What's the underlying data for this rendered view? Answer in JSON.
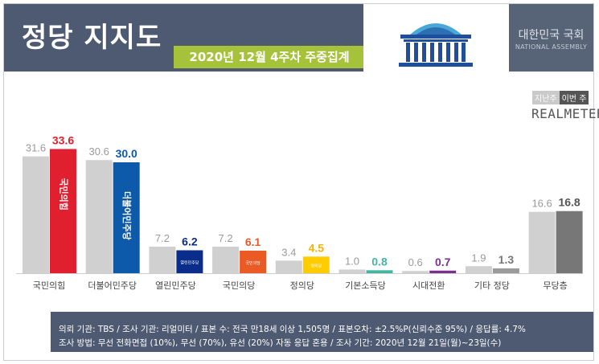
{
  "header": {
    "title": "정당 지지도",
    "subtitle": "2020년 12월 4주차 주중집계",
    "assembly_name_ko": "대한민국 국회",
    "assembly_name_en": "NATIONAL ASSEMBLY"
  },
  "legend": {
    "prev_label": "지난주",
    "this_label": "이번 주"
  },
  "brand": "REALMETER",
  "colors": {
    "prev": "#d0d0d0",
    "header_bg": "#4d5a72",
    "subtitle_bg": "#a6c13a"
  },
  "chart_data": {
    "type": "bar",
    "categories": [
      "국민의힘",
      "더불어민주당",
      "열린민주당",
      "국민의당",
      "정의당",
      "기본소득당",
      "시대전환",
      "기타 정당",
      "무당층"
    ],
    "series": [
      {
        "name": "지난주",
        "values": [
          31.6,
          30.6,
          7.2,
          7.2,
          3.4,
          1.0,
          0.6,
          1.9,
          16.6
        ]
      },
      {
        "name": "이번 주",
        "values": [
          33.6,
          30.0,
          6.2,
          6.1,
          4.5,
          0.8,
          0.7,
          1.3,
          16.8
        ]
      }
    ],
    "bar_colors": [
      "#e0202f",
      "#0d5aaa",
      "#0a2d8c",
      "#ea5a24",
      "#ffcc00",
      "#44b6a0",
      "#7a2e8e",
      "#9a9a9a",
      "#777777"
    ],
    "label_colors": [
      "#e0202f",
      "#0d5aaa",
      "#0a2d8c",
      "#ea5a24",
      "#f2b400",
      "#44b6a0",
      "#7a2e8e",
      "#777777",
      "#555555"
    ],
    "bar_text": [
      "국민의힘",
      "더불어민주당",
      "열린민주당",
      "국민의당",
      "정의당",
      "",
      "",
      "",
      ""
    ],
    "ylim": [
      0,
      40
    ],
    "grid": false,
    "legend_position": "top-right"
  },
  "footer": {
    "line1": "의뢰 기관: TBS / 조사 기관: 리얼미터 / 표본 수: 전국 만18세 이상 1,505명 / 표본오차: ±2.5%P(신뢰수준 95%) / 응답률: 4.7%",
    "line2": "조사 방법: 무선 전화면접 (10%), 무선 (70%), 유선 (20%) 자동 응답 혼용 / 조사 기간: 2020년 12월 21일(월)~23일(수)"
  }
}
